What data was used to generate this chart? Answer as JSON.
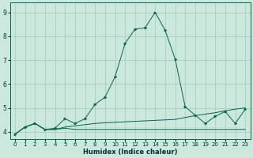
{
  "title": "",
  "xlabel": "Humidex (Indice chaleur)",
  "bg_color": "#cce8dc",
  "grid_color": "#aacfbf",
  "line_color": "#006655",
  "x_values": [
    0,
    1,
    2,
    3,
    4,
    5,
    6,
    7,
    8,
    9,
    10,
    11,
    12,
    13,
    14,
    15,
    16,
    17,
    18,
    19,
    20,
    21,
    22,
    23
  ],
  "line_main_y": [
    3.9,
    4.2,
    4.35,
    4.1,
    4.15,
    4.55,
    4.35,
    4.55,
    5.15,
    5.45,
    6.3,
    7.7,
    8.3,
    8.35,
    9.0,
    8.25,
    7.05,
    5.05,
    4.7,
    4.35,
    4.65,
    4.85,
    4.35,
    4.95
  ],
  "line_flat_y": [
    3.9,
    4.2,
    4.35,
    4.1,
    4.1,
    4.15,
    4.1,
    4.1,
    4.1,
    4.1,
    4.1,
    4.1,
    4.1,
    4.1,
    4.1,
    4.1,
    4.1,
    4.1,
    4.1,
    4.1,
    4.1,
    4.1,
    4.1,
    4.1
  ],
  "line_trend_y": [
    3.9,
    4.2,
    4.35,
    4.1,
    4.1,
    4.2,
    4.25,
    4.3,
    4.35,
    4.38,
    4.4,
    4.42,
    4.44,
    4.46,
    4.48,
    4.5,
    4.52,
    4.6,
    4.68,
    4.74,
    4.8,
    4.88,
    4.95,
    5.0
  ],
  "ylim": [
    3.7,
    9.4
  ],
  "yticks": [
    4,
    5,
    6,
    7,
    8,
    9
  ],
  "xlim": [
    -0.5,
    23.5
  ],
  "xticks": [
    0,
    1,
    2,
    3,
    4,
    5,
    6,
    7,
    8,
    9,
    10,
    11,
    12,
    13,
    14,
    15,
    16,
    17,
    18,
    19,
    20,
    21,
    22,
    23
  ]
}
